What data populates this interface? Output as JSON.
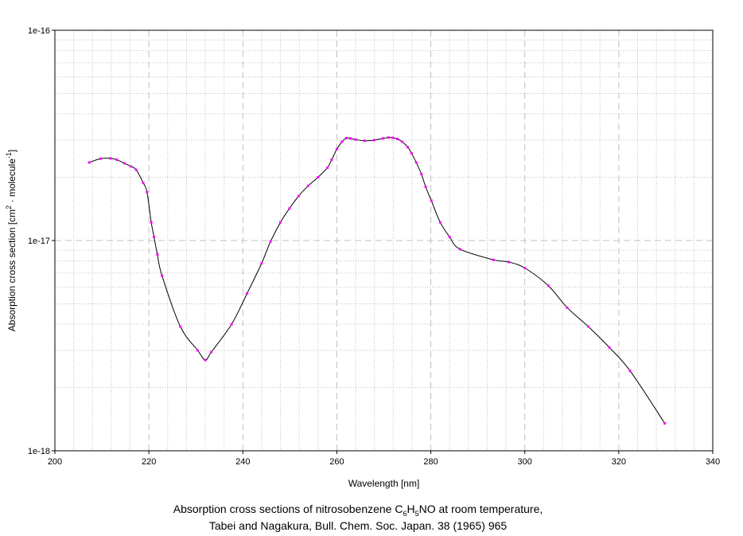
{
  "chart_data": {
    "type": "scatter",
    "scale": {
      "x": "linear",
      "y": "log"
    },
    "xlim": [
      200,
      340
    ],
    "ylim": [
      1e-18,
      1e-16
    ],
    "xticks": [
      200,
      220,
      240,
      260,
      280,
      300,
      320,
      340
    ],
    "xtick_labels": [
      "200",
      "220",
      "240",
      "260",
      "280",
      "300",
      "320",
      "340"
    ],
    "yticks": [
      1e-18,
      1e-17,
      1e-16
    ],
    "ytick_labels": [
      "1e-18",
      "1e-17",
      "1e-16"
    ],
    "grid": true,
    "legend": "none",
    "xlabel": "Wavelength [nm]",
    "ylabel": {
      "prefix": "Absorption cross section [cm",
      "sup1": "2",
      "middle": " · molecule",
      "sup2": "-1",
      "suffix": "]"
    },
    "caption": {
      "line1_prefix": "Absorption cross sections of nitrosobenzene C",
      "sub1": "6",
      "mid1": "H",
      "sub2": "5",
      "line1_suffix": "NO at room temperature,",
      "line2": "Tabei and Nagakura, Bull. Chem. Soc. Japan. 38 (1965) 965"
    },
    "colors": {
      "line": "#000000",
      "points": "#ff00ff",
      "grid": "#c0c0c0",
      "axis": "#000000"
    },
    "series": [
      {
        "x": [
          207.3,
          209.7,
          211.8,
          213.2,
          214.8,
          216.2,
          217.3,
          218.8,
          219.6,
          220.5,
          221.1,
          221.8,
          222.8,
          226.7,
          230.4,
          232.0,
          233.3,
          237.6,
          240.9,
          244.0,
          245.9,
          248.0,
          249.9,
          251.9,
          253.9,
          256.0,
          258.0,
          258.9,
          260.0,
          261.1,
          262.0,
          262.9,
          264.0,
          265.9,
          267.9,
          269.8,
          271.0,
          271.9,
          272.9,
          273.9,
          275.1,
          275.9,
          276.9,
          278.0,
          278.9,
          280.1,
          282.0,
          284.0,
          286.2,
          293.3,
          296.6,
          300.0,
          305.0,
          309.0,
          313.5,
          318.0,
          322.4,
          329.8
        ],
        "y": [
          2.35e-17,
          2.45e-17,
          2.46e-17,
          2.42e-17,
          2.33e-17,
          2.25e-17,
          2.17e-17,
          1.88e-17,
          1.7e-17,
          1.22e-17,
          1.04e-17,
          8.6e-18,
          6.8e-18,
          3.9e-18,
          3e-18,
          2.7e-18,
          2.95e-18,
          4e-18,
          5.6e-18,
          7.8e-18,
          9.9e-18,
          1.22e-17,
          1.42e-17,
          1.63e-17,
          1.82e-17,
          2e-17,
          2.22e-17,
          2.42e-17,
          2.72e-17,
          2.95e-17,
          3.07e-17,
          3.06e-17,
          3.02e-17,
          2.98e-17,
          3e-17,
          3.06e-17,
          3.09e-17,
          3.08e-17,
          3.04e-17,
          2.95e-17,
          2.78e-17,
          2.6e-17,
          2.35e-17,
          2.07e-17,
          1.8e-17,
          1.55e-17,
          1.22e-17,
          1.04e-17,
          9.1e-18,
          8.1e-18,
          7.9e-18,
          7.4e-18,
          6.1e-18,
          4.8e-18,
          3.9e-18,
          3.1e-18,
          2.4e-18,
          1.35e-18
        ]
      }
    ]
  }
}
